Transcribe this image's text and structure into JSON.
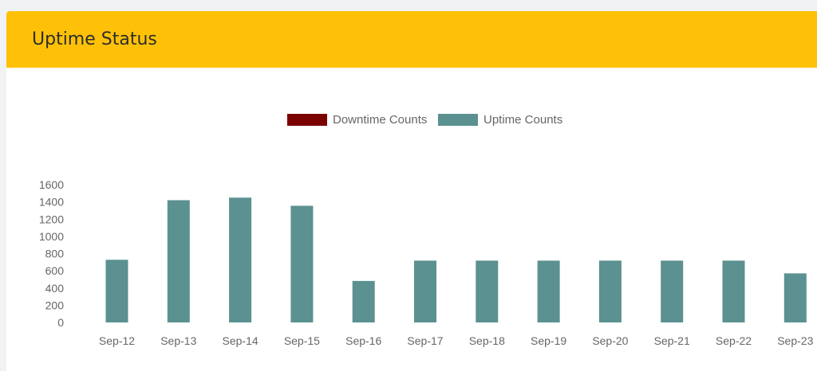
{
  "card": {
    "title": "Uptime Status"
  },
  "colors": {
    "header": "#ffc107",
    "downtime": "#7b0000",
    "uptime": "#5b9190",
    "axis_text": "#666666"
  },
  "chart_data": {
    "type": "bar",
    "categories": [
      "Sep-12",
      "Sep-13",
      "Sep-14",
      "Sep-15",
      "Sep-16",
      "Sep-17",
      "Sep-18",
      "Sep-19",
      "Sep-20",
      "Sep-21",
      "Sep-22",
      "Sep-23"
    ],
    "series": [
      {
        "name": "Downtime Counts",
        "color": "#7b0000",
        "values": [
          0,
          0,
          0,
          0,
          0,
          0,
          0,
          0,
          0,
          0,
          0,
          0
        ]
      },
      {
        "name": "Uptime Counts",
        "color": "#5b9190",
        "values": [
          728,
          1420,
          1450,
          1355,
          482,
          718,
          718,
          718,
          718,
          718,
          718,
          570
        ]
      }
    ],
    "yticks": [
      0,
      200,
      400,
      600,
      800,
      1000,
      1200,
      1400,
      1600
    ],
    "ylim": [
      0,
      1600
    ],
    "legend": "top-center",
    "grid": false
  }
}
